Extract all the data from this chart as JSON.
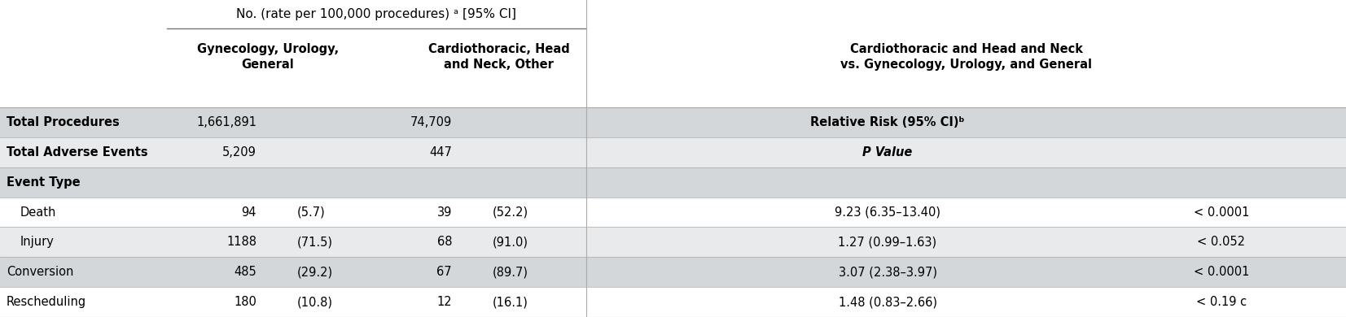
{
  "title": "No. (rate per 100,000 procedures) a [95% CI]",
  "col_headers": [
    "Gynecology, Urology,\nGeneral",
    "Cardiothoracic, Head\nand Neck, Other",
    "Cardiothoracic and Head and Neck\nvs. Gynecology, Urology, and General"
  ],
  "rows": [
    {
      "label": "Total Procedures",
      "gynu_val": "1,661,891",
      "gynu_rate": "",
      "cardio_val": "74,709",
      "cardio_rate": "",
      "rr": "Relative Risk (95% CI)ᵇ",
      "pval": "",
      "bg": "#d3d7d9",
      "label_bold": true,
      "rr_bold": true,
      "rr_italic": false,
      "indent": false
    },
    {
      "label": "Total Adverse Events",
      "gynu_val": "5,209",
      "gynu_rate": "",
      "cardio_val": "447",
      "cardio_rate": "",
      "rr": "P Value",
      "pval": "",
      "bg": "#e8eaec",
      "label_bold": true,
      "rr_bold": true,
      "rr_italic": true,
      "indent": false
    },
    {
      "label": "Event Type",
      "gynu_val": "",
      "gynu_rate": "",
      "cardio_val": "",
      "cardio_rate": "",
      "rr": "",
      "pval": "",
      "bg": "#d3d7d9",
      "label_bold": true,
      "rr_bold": false,
      "rr_italic": false,
      "indent": false
    },
    {
      "label": "Death",
      "gynu_val": "94",
      "gynu_rate": "(5.7)",
      "cardio_val": "39",
      "cardio_rate": "(52.2)",
      "rr": "9.23 (6.35–13.40)",
      "pval": "< 0.0001",
      "bg": "#ffffff",
      "label_bold": false,
      "rr_bold": false,
      "rr_italic": false,
      "indent": true
    },
    {
      "label": "Injury",
      "gynu_val": "1188",
      "gynu_rate": "(71.5)",
      "cardio_val": "68",
      "cardio_rate": "(91.0)",
      "rr": "1.27 (0.99–1.63)",
      "pval": "< 0.052",
      "bg": "#e8eaec",
      "label_bold": false,
      "rr_bold": false,
      "rr_italic": false,
      "indent": true
    },
    {
      "label": "Conversion",
      "gynu_val": "485",
      "gynu_rate": "(29.2)",
      "cardio_val": "67",
      "cardio_rate": "(89.7)",
      "rr": "3.07 (2.38–3.97)",
      "pval": "< 0.0001",
      "bg": "#d3d7d9",
      "label_bold": false,
      "rr_bold": false,
      "rr_italic": false,
      "indent": false
    },
    {
      "label": "Rescheduling",
      "gynu_val": "180",
      "gynu_rate": "(10.8)",
      "cardio_val": "12",
      "cardio_rate": "(16.1)",
      "rr": "1.48 (0.83–2.66)",
      "pval": "< 0.19 c",
      "bg": "#ffffff",
      "label_bold": false,
      "rr_bold": false,
      "rr_italic": false,
      "indent": false
    }
  ],
  "font_size": 10.5,
  "header_font_size": 10.5
}
